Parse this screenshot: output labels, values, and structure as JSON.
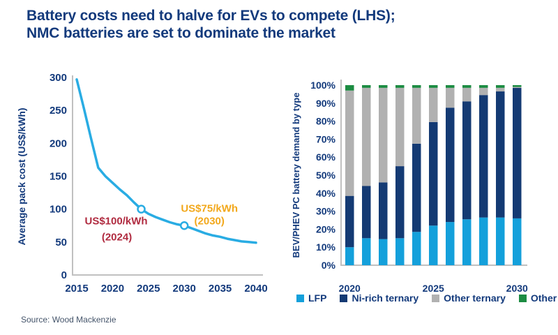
{
  "title": {
    "line1": "Battery costs need to halve for EVs to compete (LHS);",
    "line2": "NMC batteries are set to dominate the market"
  },
  "source": "Source: Wood Mackenzie",
  "colors": {
    "title_navy": "#133A7C",
    "axis_gray": "#C0C0C0",
    "line_blue": "#29ACE3",
    "marker_fill": "#FFFFFF",
    "annotation_red": "#B02B40",
    "annotation_orange": "#F2A81C",
    "lfp_blue": "#14A0DB",
    "ni_rich_navy": "#143A73",
    "other_ternary_gray": "#B1B1B1",
    "other_green": "#1C8C42",
    "source_gray": "#44546A"
  },
  "chart_data": [
    {
      "type": "line",
      "ylabel": "Average pack cost (US$/kWh)",
      "xlim": [
        2015,
        2040
      ],
      "ylim": [
        0,
        300
      ],
      "xticks": [
        2015,
        2020,
        2025,
        2030,
        2035,
        2040
      ],
      "yticks": [
        0,
        50,
        100,
        150,
        200,
        250,
        300
      ],
      "line_color": "#29ACE3",
      "x": [
        2015,
        2016,
        2017,
        2018,
        2019,
        2020,
        2021,
        2022,
        2023,
        2024,
        2025,
        2026,
        2027,
        2028,
        2029,
        2030,
        2031,
        2032,
        2033,
        2034,
        2035,
        2036,
        2037,
        2038,
        2039,
        2040
      ],
      "y": [
        297,
        253,
        207,
        163,
        150,
        140,
        130,
        121,
        110,
        100,
        93,
        88,
        84,
        80,
        77,
        75,
        71,
        67,
        63,
        60,
        58,
        55,
        53,
        51,
        50,
        49
      ],
      "markers": [
        {
          "x": 2024,
          "y": 100
        },
        {
          "x": 2030,
          "y": 75
        }
      ],
      "annotations": [
        {
          "line1": "US$100/kWh",
          "line2": "(2024)",
          "x": 2024,
          "y": 100,
          "color": "#B02B40",
          "position": "below-left"
        },
        {
          "line1": "US$75/kWh",
          "line2": "(2030)",
          "x": 2030,
          "y": 75,
          "color": "#F2A81C",
          "position": "above-right"
        }
      ],
      "grid": false,
      "legend_position": "none"
    },
    {
      "type": "bar",
      "stacked": true,
      "ylabel": "BEV/PHEV PC battery demand by type",
      "categories": [
        2020,
        2021,
        2022,
        2023,
        2024,
        2025,
        2026,
        2027,
        2028,
        2029,
        2030
      ],
      "xticks": [
        2020,
        2025,
        2030
      ],
      "yticks": [
        "0%",
        "10%",
        "20%",
        "30%",
        "40%",
        "50%",
        "60%",
        "70%",
        "80%",
        "90%",
        "100%"
      ],
      "ylim": [
        0,
        100
      ],
      "unit": "%",
      "series": [
        {
          "name": "LFP",
          "color": "#14A0DB",
          "values": [
            10,
            15,
            14.5,
            15,
            18.5,
            22,
            24,
            25.5,
            26.5,
            26.5,
            26
          ]
        },
        {
          "name": "Ni-rich ternary",
          "color": "#143A73",
          "values": [
            28.5,
            29,
            31.5,
            40,
            49,
            57.5,
            63.5,
            65.5,
            68,
            70,
            72.5
          ]
        },
        {
          "name": "Other ternary",
          "color": "#B1B1B1",
          "values": [
            58.5,
            54.5,
            52.5,
            43.5,
            31,
            19,
            11,
            7.5,
            4,
            2,
            0.5
          ]
        },
        {
          "name": "Other",
          "color": "#1C8C42",
          "values": [
            3,
            1.5,
            1.5,
            1.5,
            1.5,
            1.5,
            1.5,
            1.5,
            1.5,
            1.5,
            1
          ]
        }
      ],
      "grid": false,
      "legend_position": "bottom"
    }
  ]
}
